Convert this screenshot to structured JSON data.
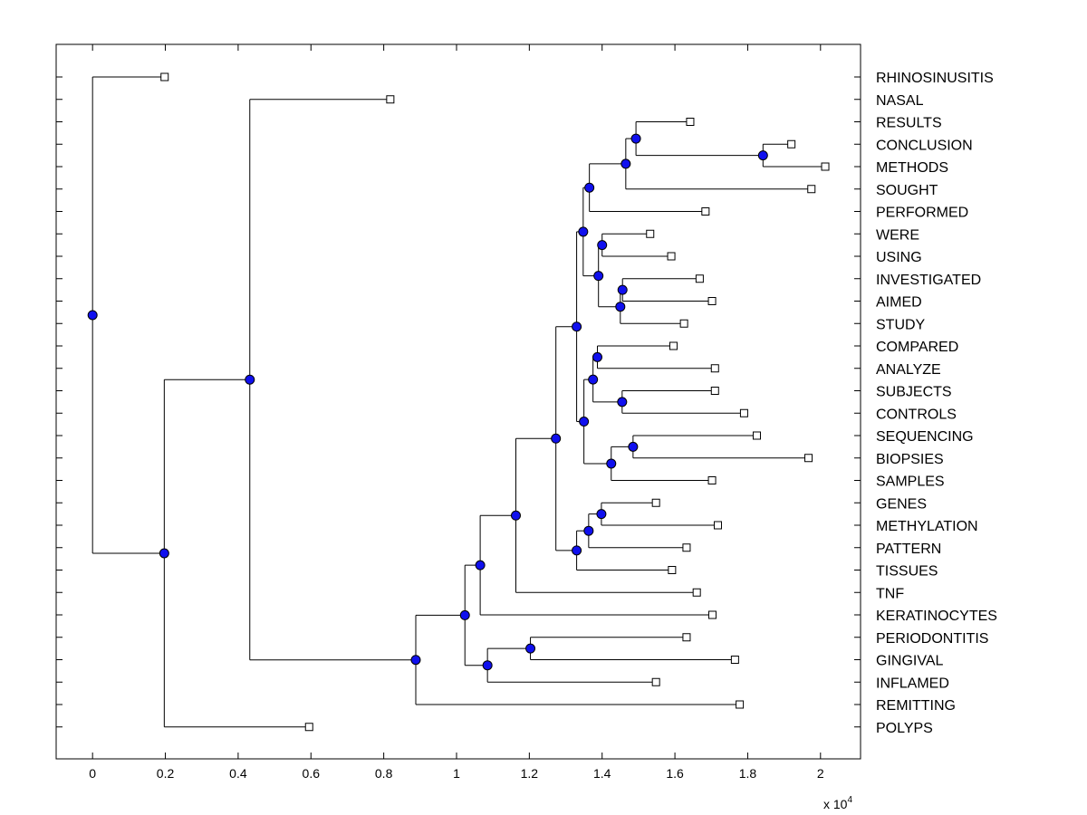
{
  "chart_data": {
    "type": "dendrogram",
    "title": "",
    "xlabel": "",
    "ylabel": "",
    "x_scale_label": "x 10",
    "x_scale_exponent": "4",
    "xlim": [
      -0.1,
      2.11
    ],
    "x_ticks": [
      0,
      0.2,
      0.4,
      0.6,
      0.8,
      1,
      1.2,
      1.4,
      1.6,
      1.8,
      2
    ],
    "x_tick_labels": [
      "0",
      "0.2",
      "0.4",
      "0.6",
      "0.8",
      "1",
      "1.2",
      "1.4",
      "1.6",
      "1.8",
      "2"
    ],
    "leaves": [
      {
        "label": "RHINOSINUSITIS",
        "value": 0.198
      },
      {
        "label": "NASAL",
        "value": 0.818
      },
      {
        "label": "RESULTS",
        "value": 1.642
      },
      {
        "label": "CONCLUSION",
        "value": 1.92
      },
      {
        "label": "METHODS",
        "value": 2.013
      },
      {
        "label": "SOUGHT",
        "value": 1.975
      },
      {
        "label": "PERFORMED",
        "value": 1.684
      },
      {
        "label": "WERE",
        "value": 1.532
      },
      {
        "label": "USING",
        "value": 1.59
      },
      {
        "label": "INVESTIGATED",
        "value": 1.668
      },
      {
        "label": "AIMED",
        "value": 1.702
      },
      {
        "label": "STUDY",
        "value": 1.625
      },
      {
        "label": "COMPARED",
        "value": 1.596
      },
      {
        "label": "ANALYZE",
        "value": 1.71
      },
      {
        "label": "SUBJECTS",
        "value": 1.71
      },
      {
        "label": "CONTROLS",
        "value": 1.79
      },
      {
        "label": "SEQUENCING",
        "value": 1.825
      },
      {
        "label": "BIOPSIES",
        "value": 1.967
      },
      {
        "label": "SAMPLES",
        "value": 1.702
      },
      {
        "label": "GENES",
        "value": 1.548
      },
      {
        "label": "METHYLATION",
        "value": 1.718
      },
      {
        "label": "PATTERN",
        "value": 1.632
      },
      {
        "label": "TISSUES",
        "value": 1.592
      },
      {
        "label": "TNF",
        "value": 1.66
      },
      {
        "label": "KERATINOCYTES",
        "value": 1.703
      },
      {
        "label": "PERIODONTITIS",
        "value": 1.632
      },
      {
        "label": "GINGIVAL",
        "value": 1.765
      },
      {
        "label": "INFLAMED",
        "value": 1.548
      },
      {
        "label": "REMITTING",
        "value": 1.778
      },
      {
        "label": "POLYPS",
        "value": 0.595
      }
    ],
    "nodes": [
      {
        "value": 1.842,
        "children": [
          "L3",
          "L4"
        ]
      },
      {
        "value": 1.493,
        "children": [
          "L2",
          "N0"
        ]
      },
      {
        "value": 1.465,
        "children": [
          "N1",
          "L5"
        ]
      },
      {
        "value": 1.365,
        "children": [
          "N2",
          "L6"
        ]
      },
      {
        "value": 1.4,
        "children": [
          "L7",
          "L8"
        ]
      },
      {
        "value": 1.456,
        "children": [
          "L9",
          "L10"
        ]
      },
      {
        "value": 1.45,
        "children": [
          "N5",
          "L11"
        ]
      },
      {
        "value": 1.39,
        "children": [
          "N4",
          "N6"
        ]
      },
      {
        "value": 1.348,
        "children": [
          "N3",
          "N7"
        ]
      },
      {
        "value": 1.387,
        "children": [
          "L12",
          "L13"
        ]
      },
      {
        "value": 1.455,
        "children": [
          "L14",
          "L15"
        ]
      },
      {
        "value": 1.375,
        "children": [
          "N9",
          "N10"
        ]
      },
      {
        "value": 1.485,
        "children": [
          "L16",
          "L17"
        ]
      },
      {
        "value": 1.425,
        "children": [
          "N12",
          "L18"
        ]
      },
      {
        "value": 1.35,
        "children": [
          "N11",
          "N13"
        ]
      },
      {
        "value": 1.33,
        "children": [
          "N8",
          "N14"
        ]
      },
      {
        "value": 1.398,
        "children": [
          "L19",
          "L20"
        ]
      },
      {
        "value": 1.363,
        "children": [
          "N16",
          "L21"
        ]
      },
      {
        "value": 1.33,
        "children": [
          "N17",
          "L22"
        ]
      },
      {
        "value": 1.273,
        "children": [
          "N15",
          "N18"
        ]
      },
      {
        "value": 1.163,
        "children": [
          "N19",
          "L23"
        ]
      },
      {
        "value": 1.065,
        "children": [
          "N20",
          "L24"
        ]
      },
      {
        "value": 1.203,
        "children": [
          "L25",
          "L26"
        ]
      },
      {
        "value": 1.085,
        "children": [
          "N22",
          "L27"
        ]
      },
      {
        "value": 1.023,
        "children": [
          "N21",
          "N23"
        ]
      },
      {
        "value": 0.888,
        "children": [
          "N24",
          "L28"
        ]
      },
      {
        "value": 0.432,
        "children": [
          "L1",
          "N25"
        ]
      },
      {
        "value": 0.197,
        "children": [
          "N26",
          "L29"
        ]
      },
      {
        "value": 0.0,
        "children": [
          "L0",
          "N27"
        ]
      }
    ]
  }
}
